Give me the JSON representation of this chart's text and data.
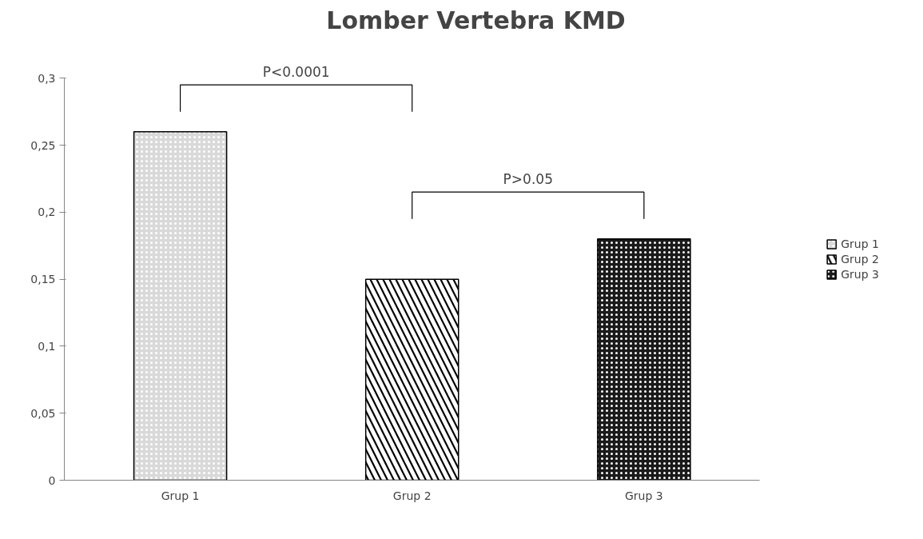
{
  "chart_data": {
    "type": "bar",
    "title": "Lomber Vertebra KMD",
    "categories": [
      "Grup 1",
      "Grup 2",
      "Grup 3"
    ],
    "series": [
      {
        "name": "Grup 1",
        "color": "#d9d9d9",
        "values": [
          0.26,
          null,
          null
        ]
      },
      {
        "name": "Grup 2",
        "color": "#000000",
        "values": [
          null,
          0.15,
          null
        ]
      },
      {
        "name": "Grup 3",
        "color": "#1a1a1a",
        "values": [
          null,
          null,
          0.18
        ]
      }
    ],
    "ylim": [
      0,
      0.3
    ],
    "yticks": [
      0,
      {
        "value": 0.05,
        "label": "0,05"
      },
      {
        "value": 0.1,
        "label": "0,1"
      },
      {
        "value": 0.15,
        "label": "0,15"
      },
      {
        "value": 0.2,
        "label": "0,2"
      },
      {
        "value": 0.25,
        "label": "0,25"
      },
      {
        "value": 0.3,
        "label": "0,3"
      }
    ],
    "annotations": [
      "P<0.0001",
      "P>0.05"
    ],
    "grid": false,
    "legend": "right"
  }
}
